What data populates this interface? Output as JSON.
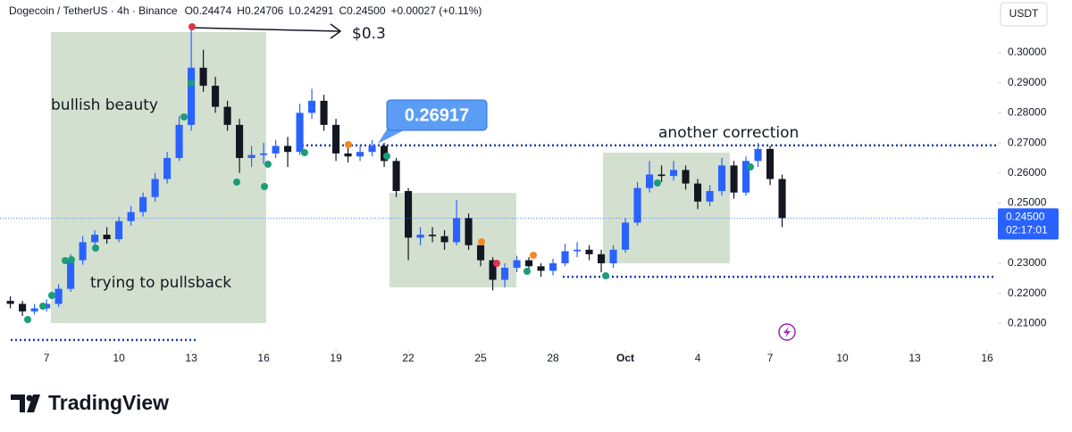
{
  "chart_data": {
    "type": "candlestick",
    "title": "Dogecoin / TetherUS · 4h · Binance",
    "ohlc_legend": [
      {
        "key": "O",
        "value": "0.24474"
      },
      {
        "key": "H",
        "value": "0.24706"
      },
      {
        "key": "L",
        "value": "0.24291"
      },
      {
        "key": "C",
        "value": "0.24500"
      }
    ],
    "change": "+0.00027 (+0.11%)",
    "y_axis_unit": "USDT",
    "x": [
      5.5,
      6,
      6.5,
      7,
      7.5,
      8,
      8.5,
      9,
      9.5,
      10,
      10.5,
      11,
      11.5,
      12,
      12.5,
      13,
      13.5,
      14,
      14.5,
      15,
      15.5,
      16,
      16.5,
      17,
      17.5,
      18,
      18.5,
      19,
      19.5,
      20,
      20.5,
      21,
      21.5,
      22,
      22.5,
      23,
      23.5,
      24,
      24.5,
      25,
      25.5,
      26,
      26.5,
      27,
      27.5,
      28,
      28.5,
      29,
      29.5,
      30,
      30.5,
      31,
      31.5,
      32,
      32.5,
      33,
      33.5,
      34,
      34.5,
      35,
      35.5,
      36,
      36.5,
      37,
      37.5
    ],
    "open": [
      0.2175,
      0.2165,
      0.214,
      0.215,
      0.2165,
      0.2215,
      0.231,
      0.237,
      0.2395,
      0.238,
      0.244,
      0.247,
      0.252,
      0.258,
      0.265,
      0.276,
      0.295,
      0.289,
      0.282,
      0.276,
      0.265,
      0.266,
      0.2665,
      0.269,
      0.267,
      0.28,
      0.284,
      0.276,
      0.2665,
      0.2655,
      0.267,
      0.269,
      0.264,
      0.254,
      0.2385,
      0.2395,
      0.239,
      0.237,
      0.245,
      0.236,
      0.231,
      0.2245,
      0.2285,
      0.231,
      0.229,
      0.2275,
      0.23,
      0.234,
      0.2345,
      0.233,
      0.23,
      0.2345,
      0.2435,
      0.255,
      0.2595,
      0.259,
      0.261,
      0.2565,
      0.2505,
      0.254,
      0.2625,
      0.2535,
      0.264,
      0.268,
      0.258
    ],
    "high": [
      0.219,
      0.2175,
      0.2165,
      0.218,
      0.223,
      0.233,
      0.239,
      0.241,
      0.242,
      0.2455,
      0.249,
      0.2535,
      0.26,
      0.267,
      0.279,
      0.3086,
      0.301,
      0.292,
      0.284,
      0.278,
      0.269,
      0.27,
      0.271,
      0.272,
      0.283,
      0.288,
      0.286,
      0.278,
      0.269,
      0.269,
      0.271,
      0.27,
      0.265,
      0.255,
      0.242,
      0.242,
      0.241,
      0.251,
      0.2465,
      0.2375,
      0.232,
      0.23,
      0.2325,
      0.232,
      0.23,
      0.2315,
      0.2365,
      0.237,
      0.236,
      0.2345,
      0.236,
      0.245,
      0.257,
      0.264,
      0.2625,
      0.264,
      0.2625,
      0.258,
      0.256,
      0.265,
      0.264,
      0.2655,
      0.27,
      0.269,
      0.2595
    ],
    "low": [
      0.215,
      0.2125,
      0.213,
      0.214,
      0.2155,
      0.2205,
      0.2295,
      0.235,
      0.2365,
      0.237,
      0.2425,
      0.2455,
      0.2505,
      0.2565,
      0.264,
      0.274,
      0.287,
      0.28,
      0.274,
      0.26,
      0.262,
      0.263,
      0.265,
      0.262,
      0.266,
      0.278,
      0.274,
      0.264,
      0.2635,
      0.264,
      0.2655,
      0.262,
      0.252,
      0.231,
      0.236,
      0.237,
      0.2345,
      0.236,
      0.2345,
      0.229,
      0.221,
      0.222,
      0.227,
      0.227,
      0.2255,
      0.226,
      0.229,
      0.232,
      0.231,
      0.227,
      0.2285,
      0.2335,
      0.2425,
      0.2535,
      0.257,
      0.2575,
      0.2545,
      0.248,
      0.249,
      0.2525,
      0.2515,
      0.2525,
      0.262,
      0.256,
      0.242
    ],
    "close": [
      0.2165,
      0.214,
      0.215,
      0.2165,
      0.2215,
      0.231,
      0.237,
      0.2395,
      0.238,
      0.244,
      0.247,
      0.252,
      0.258,
      0.265,
      0.276,
      0.295,
      0.289,
      0.282,
      0.276,
      0.265,
      0.266,
      0.2665,
      0.269,
      0.267,
      0.28,
      0.284,
      0.276,
      0.2665,
      0.2655,
      0.267,
      0.269,
      0.264,
      0.254,
      0.2385,
      0.2395,
      0.239,
      0.237,
      0.245,
      0.236,
      0.231,
      0.2245,
      0.2285,
      0.231,
      0.229,
      0.2275,
      0.23,
      0.234,
      0.2345,
      0.233,
      0.23,
      0.2345,
      0.2435,
      0.255,
      0.2595,
      0.259,
      0.261,
      0.2565,
      0.2505,
      0.254,
      0.2625,
      0.2535,
      0.264,
      0.268,
      0.258,
      0.245
    ],
    "up_color": "#2962ff",
    "down_color": "#131722",
    "xlim": [
      5.07,
      46.37
    ],
    "xticks": [
      7,
      10,
      13,
      16,
      19,
      22,
      25,
      28,
      {
        "value": 31,
        "label": "Oct"
      },
      34,
      37,
      40,
      43,
      46
    ],
    "xtick_labels_shown": [
      "7",
      "10",
      "13",
      "16",
      "19",
      "22",
      "25",
      "28",
      "Oct",
      "4",
      "7",
      "10",
      "13",
      "16"
    ],
    "ylim": [
      0.2018,
      0.3175
    ],
    "yticks": [
      {
        "value": 0.21,
        "label": "0.21000"
      },
      {
        "value": 0.22,
        "label": "0.22000"
      },
      {
        "value": 0.23,
        "label": "0.23000"
      },
      {
        "value": 0.24,
        "label": "0.24000"
      },
      {
        "value": 0.25,
        "label": "0.25000"
      },
      {
        "value": 0.26,
        "label": "0.26000"
      },
      {
        "value": 0.27,
        "label": "0.27000"
      },
      {
        "value": 0.28,
        "label": "0.28000"
      },
      {
        "value": 0.29,
        "label": "0.29000"
      },
      {
        "value": 0.3,
        "label": "0.30000"
      }
    ],
    "grid": false,
    "levels": [
      {
        "value": 0.26917,
        "label": "0.26917"
      },
      {
        "value": 0.2255
      },
      {
        "value": 0.2045
      }
    ],
    "level_color": "#1e3fa8",
    "last_price": {
      "value": 0.245,
      "label": "0.24500"
    },
    "countdown": "02:17:01",
    "last_price_color": "#2962ff",
    "annotations": [
      "bullish beauty",
      "trying to pullsback",
      "another correction",
      "$0.3"
    ]
  },
  "brand": "TradingView"
}
